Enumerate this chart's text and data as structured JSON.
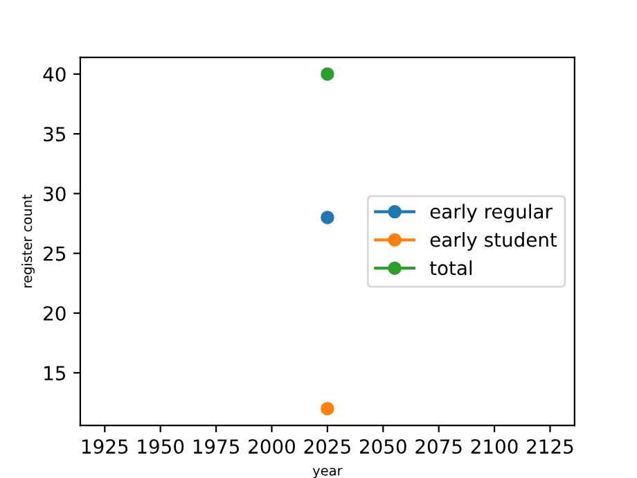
{
  "chart_data": {
    "type": "line",
    "xlabel": "year",
    "ylabel": "register count",
    "x": [
      2025
    ],
    "series": [
      {
        "name": "early regular",
        "color": "#1f77b4",
        "values": [
          28
        ]
      },
      {
        "name": "early student",
        "color": "#ff7f0e",
        "values": [
          12
        ]
      },
      {
        "name": "total",
        "color": "#2ca02c",
        "values": [
          40
        ]
      }
    ],
    "xlim": [
      1914,
      2136
    ],
    "xticks": [
      1925,
      1950,
      1975,
      2000,
      2025,
      2050,
      2075,
      2100,
      2125
    ],
    "ylim": [
      10.6,
      41.4
    ],
    "yticks": [
      15,
      20,
      25,
      30,
      35,
      40
    ],
    "marker": "circle",
    "line_style": "solid",
    "legend": "right",
    "grid": false
  }
}
